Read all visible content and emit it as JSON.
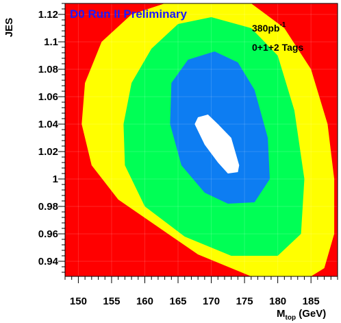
{
  "chart_data": {
    "type": "contour",
    "title": "D0 Run II Preliminary",
    "xlabel": "M",
    "xlabel_sub": "top",
    "xlabel_unit": " (GeV)",
    "ylabel": "JES",
    "xlim": [
      148,
      189
    ],
    "ylim": [
      0.929,
      1.128
    ],
    "xticks": [
      150,
      155,
      160,
      165,
      170,
      175,
      180,
      185
    ],
    "yticks": [
      0.94,
      0.96,
      0.98,
      1,
      1.02,
      1.04,
      1.06,
      1.08,
      1.1,
      1.12
    ],
    "ytick_labels": [
      "0.94",
      "0.96",
      "0.98",
      "1",
      "1.02",
      "1.04",
      "1.06",
      "1.08",
      "1.1",
      "1.12"
    ],
    "annotations": [
      {
        "text": "380pb",
        "superscript": "-1"
      },
      {
        "text": "0+1+2 Tags"
      }
    ],
    "background_color": "#ff0000",
    "contour_levels": [
      {
        "color": "#ffff00",
        "points": [
          [
            167,
            1.128
          ],
          [
            176,
            1.128
          ],
          [
            181,
            1.11
          ],
          [
            185,
            1.08
          ],
          [
            187.5,
            1.04
          ],
          [
            188.5,
            1.0
          ],
          [
            188.5,
            0.96
          ],
          [
            187,
            0.935
          ],
          [
            185,
            0.929
          ],
          [
            176,
            0.929
          ],
          [
            168,
            0.945
          ],
          [
            162,
            0.965
          ],
          [
            156,
            0.985
          ],
          [
            152,
            1.01
          ],
          [
            150.5,
            1.04
          ],
          [
            151,
            1.07
          ],
          [
            153.5,
            1.1
          ],
          [
            158,
            1.12
          ],
          [
            163,
            1.128
          ]
        ]
      },
      {
        "color": "#00ff55",
        "points": [
          [
            170,
            1.118
          ],
          [
            176,
            1.11
          ],
          [
            180,
            1.09
          ],
          [
            182.5,
            1.05
          ],
          [
            184,
            1.0
          ],
          [
            183.5,
            0.96
          ],
          [
            180,
            0.944
          ],
          [
            173,
            0.944
          ],
          [
            166,
            0.958
          ],
          [
            160,
            0.98
          ],
          [
            157,
            1.01
          ],
          [
            156.8,
            1.04
          ],
          [
            158,
            1.07
          ],
          [
            161,
            1.095
          ],
          [
            165,
            1.113
          ]
        ]
      },
      {
        "color": "#0d7df2",
        "points": [
          [
            170.5,
            1.093
          ],
          [
            174,
            1.085
          ],
          [
            176.5,
            1.065
          ],
          [
            178.5,
            1.03
          ],
          [
            178.8,
            1.0
          ],
          [
            176.5,
            0.983
          ],
          [
            172.5,
            0.982
          ],
          [
            169,
            0.99
          ],
          [
            165.5,
            1.01
          ],
          [
            163.8,
            1.04
          ],
          [
            164,
            1.07
          ],
          [
            166.5,
            1.087
          ]
        ]
      },
      {
        "color": "#ffffff",
        "points": [
          [
            169.5,
            1.047
          ],
          [
            171,
            1.04
          ],
          [
            173,
            1.03
          ],
          [
            174.2,
            1.01
          ],
          [
            174,
            1.005
          ],
          [
            172.5,
            1.004
          ],
          [
            171,
            1.012
          ],
          [
            169,
            1.025
          ],
          [
            167.5,
            1.04
          ],
          [
            168,
            1.045
          ]
        ]
      }
    ]
  }
}
